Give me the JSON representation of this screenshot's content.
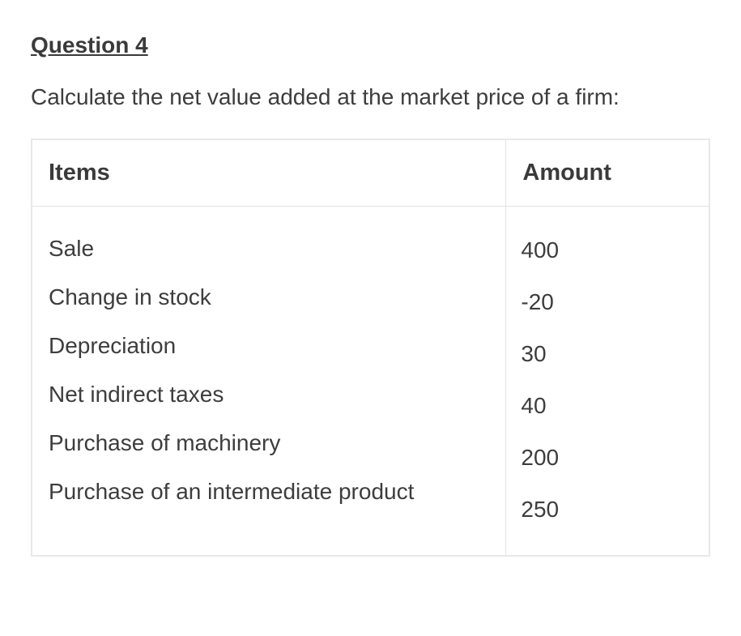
{
  "heading": "Question 4",
  "prompt": "Calculate the net value added at the market price of a firm:",
  "table": {
    "columns": [
      "Items",
      "Amount"
    ],
    "rows": [
      {
        "item": "Sale",
        "amount": "400"
      },
      {
        "item": "Change in stock",
        "amount": "-20"
      },
      {
        "item": "Depreciation",
        "amount": "30"
      },
      {
        "item": "Net indirect taxes",
        "amount": "40"
      },
      {
        "item": "Purchase of machinery",
        "amount": "200"
      },
      {
        "item": "Purchase of an intermediate product",
        "amount": "250"
      }
    ],
    "header_fontsize": 29,
    "body_fontsize": 28,
    "border_color": "#e4e4e4",
    "text_color": "#3d3d3d",
    "background_color": "#ffffff"
  },
  "styling": {
    "heading_fontsize": 28,
    "heading_weight": 700,
    "heading_underline": true,
    "prompt_fontsize": 28,
    "font_family": "Arial, Helvetica, sans-serif"
  }
}
